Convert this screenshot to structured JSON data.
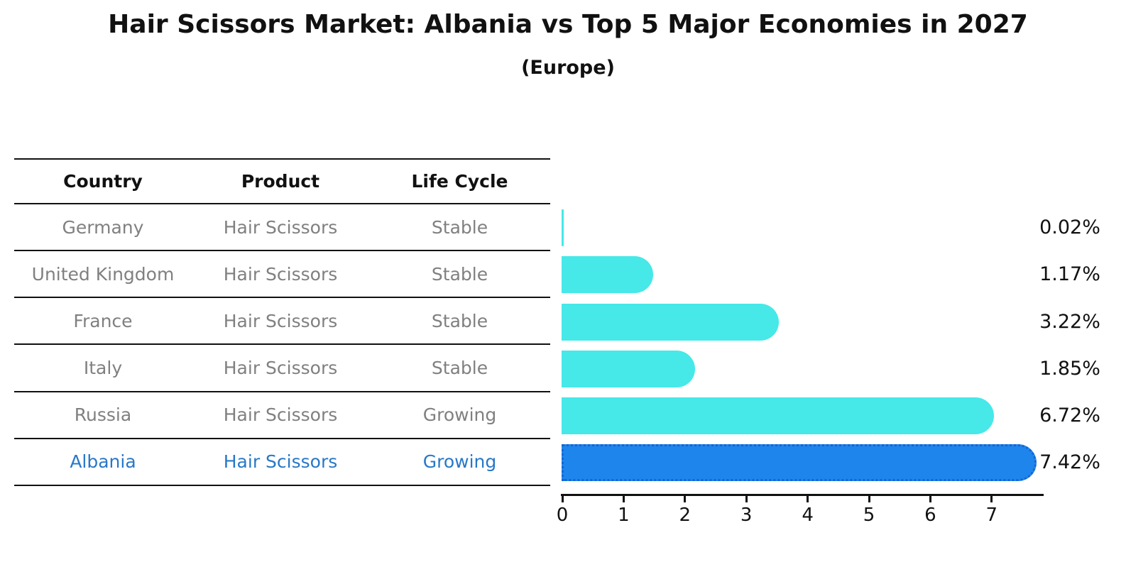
{
  "title": "Hair Scissors Market: Albania vs Top 5 Major Economies in 2027",
  "subtitle": "(Europe)",
  "table": {
    "columns": [
      "Country",
      "Product",
      "Life Cycle"
    ],
    "rows": [
      {
        "country": "Germany",
        "product": "Hair Scissors",
        "life_cycle": "Stable",
        "share_label": "0.02%",
        "highlight": false
      },
      {
        "country": "United Kingdom",
        "product": "Hair Scissors",
        "life_cycle": "Stable",
        "share_label": "1.17%",
        "highlight": false
      },
      {
        "country": "France",
        "product": "Hair Scissors",
        "life_cycle": "Stable",
        "share_label": "3.22%",
        "highlight": false
      },
      {
        "country": "Italy",
        "product": "Hair Scissors",
        "life_cycle": "Stable",
        "share_label": "1.85%",
        "highlight": false
      },
      {
        "country": "Russia",
        "product": "Hair Scissors",
        "life_cycle": "Growing",
        "share_label": "6.72%",
        "highlight": false
      },
      {
        "country": "Albania",
        "product": "Hair Scissors",
        "life_cycle": "Growing",
        "share_label": "7.42%",
        "highlight": true
      }
    ]
  },
  "chart_data": {
    "type": "bar",
    "orientation": "horizontal",
    "title": "Hair Scissors Market: Albania vs Top 5 Major Economies in 2027",
    "subtitle": "(Europe)",
    "categories": [
      "Germany",
      "United Kingdom",
      "France",
      "Italy",
      "Russia",
      "Albania"
    ],
    "values": [
      0.02,
      1.17,
      3.22,
      1.85,
      6.72,
      7.42
    ],
    "value_labels": [
      "0.02%",
      "1.17%",
      "3.22%",
      "1.85%",
      "6.72%",
      "7.42%"
    ],
    "xlabel": "",
    "ylabel": "",
    "xlim": [
      0,
      7.8
    ],
    "xticks": [
      0,
      1,
      2,
      3,
      4,
      5,
      6,
      7
    ],
    "grid": false,
    "legend": false,
    "highlight_index": 5
  },
  "colors": {
    "bar": "#46E8E8",
    "highlight_bar": "#1E85EC",
    "highlight_border": "#1565D2",
    "table_text": "#808080",
    "highlight_text": "#2878C8",
    "heading_text": "#000000",
    "axis": "#000000"
  }
}
